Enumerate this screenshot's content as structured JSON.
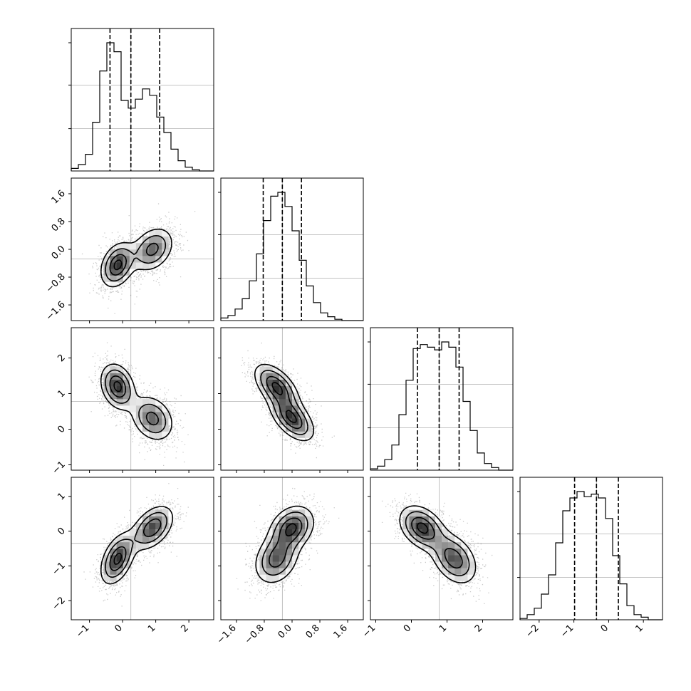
{
  "chart_data": {
    "type": "corner",
    "n_params": 4,
    "colors": {
      "line": "#000000",
      "grid": "#b0b0b0",
      "points": "#404040",
      "fill_dark": "#000000",
      "fill_light": "#ffffff"
    },
    "grid": true,
    "params": [
      {
        "range": [
          -1.55,
          2.75
        ],
        "mean": 0.25,
        "quantiles": [
          -0.38,
          0.25,
          1.12
        ],
        "ticks": [
          -1,
          0,
          1,
          2
        ],
        "tick_labels": [
          "−1",
          "0",
          "1",
          "2"
        ],
        "hist": [
          0.02,
          0.05,
          0.13,
          0.38,
          0.78,
          1.0,
          0.93,
          0.55,
          0.49,
          0.56,
          0.64,
          0.59,
          0.42,
          0.3,
          0.17,
          0.08,
          0.03,
          0.01,
          0.0,
          0.0
        ]
      },
      {
        "range": [
          -2.05,
          2.05
        ],
        "mean": -0.28,
        "quantiles": [
          -0.83,
          -0.28,
          0.27
        ],
        "ticks": [
          -1.6,
          -0.8,
          0.0,
          0.8,
          1.6
        ],
        "tick_labels": [
          "−1.6",
          "−0.8",
          "0.0",
          "0.8",
          "1.6"
        ],
        "hist": [
          0.02,
          0.04,
          0.09,
          0.17,
          0.31,
          0.52,
          0.78,
          0.97,
          1.0,
          0.89,
          0.7,
          0.47,
          0.27,
          0.14,
          0.06,
          0.03,
          0.01,
          0.0,
          0.0,
          0.0
        ]
      },
      {
        "range": [
          -1.15,
          2.85
        ],
        "mean": 0.78,
        "quantiles": [
          0.17,
          0.78,
          1.34
        ],
        "ticks": [
          -1,
          0,
          1,
          2
        ],
        "tick_labels": [
          "−1",
          "0",
          "1",
          "2"
        ],
        "hist": [
          0.01,
          0.03,
          0.08,
          0.19,
          0.42,
          0.68,
          0.92,
          0.95,
          0.93,
          0.91,
          0.97,
          0.93,
          0.78,
          0.52,
          0.3,
          0.13,
          0.05,
          0.02,
          0.0,
          0.0
        ]
      },
      {
        "range": [
          -2.55,
          1.55
        ],
        "mean": -0.35,
        "quantiles": [
          -0.98,
          -0.35,
          0.28
        ],
        "ticks": [
          -2,
          -1,
          0,
          1
        ],
        "tick_labels": [
          "−2",
          "−1",
          "0",
          "1"
        ],
        "hist": [
          0.01,
          0.04,
          0.09,
          0.2,
          0.35,
          0.6,
          0.85,
          0.95,
          1.0,
          0.96,
          0.98,
          0.95,
          0.79,
          0.5,
          0.28,
          0.11,
          0.04,
          0.02,
          0.0,
          0.0
        ]
      }
    ],
    "mixture": [
      {
        "weight": 0.5,
        "mean": [
          -0.15,
          -0.45,
          1.2,
          -0.8
        ],
        "sd": [
          0.28,
          0.35,
          0.35,
          0.4
        ]
      },
      {
        "weight": 0.5,
        "mean": [
          0.9,
          0.0,
          0.3,
          0.1
        ],
        "sd": [
          0.35,
          0.35,
          0.35,
          0.35
        ]
      }
    ],
    "corr": [
      [
        1,
        0.3,
        -0.25,
        0.45
      ],
      [
        0.3,
        1,
        -0.55,
        0.25
      ],
      [
        -0.25,
        -0.55,
        1,
        -0.35
      ],
      [
        0.45,
        0.25,
        -0.35,
        1
      ]
    ],
    "contour_levels": [
      0.92,
      0.7,
      0.42,
      0.2
    ]
  }
}
